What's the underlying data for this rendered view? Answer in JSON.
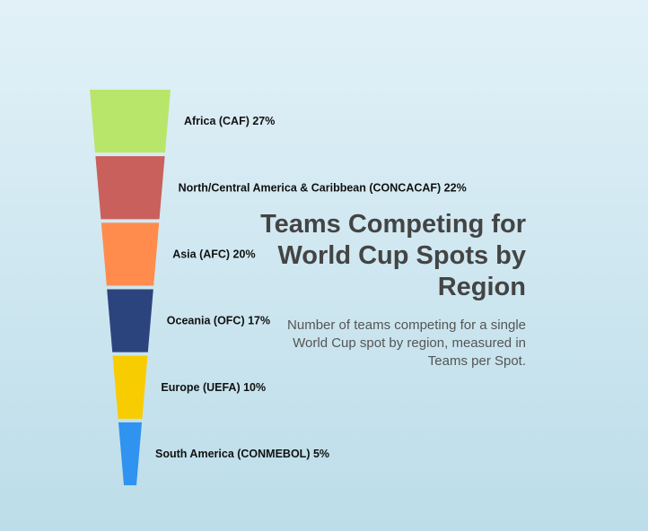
{
  "chart_data": {
    "type": "funnel",
    "title": "Teams Competing for World Cup Spots by Region",
    "subtitle": "Number of teams competing for a single World Cup spot by region, measured in Teams per Spot.",
    "unit": "%",
    "segments": [
      {
        "label": "Africa (CAF)",
        "value": 27,
        "display": "Africa (CAF) 27%",
        "color": "#b8e66a"
      },
      {
        "label": "North/Central America & Caribbean (CONCACAF)",
        "value": 22,
        "display": "North/Central America & Caribbean (CONCACAF) 22%",
        "color": "#c9605b"
      },
      {
        "label": "Asia (AFC)",
        "value": 20,
        "display": "Asia (AFC) 20%",
        "color": "#ff8c4d"
      },
      {
        "label": "Oceania (OFC)",
        "value": 17,
        "display": "Oceania (OFC) 17%",
        "color": "#2c447e"
      },
      {
        "label": "Europe (UEFA)",
        "value": 10,
        "display": "Europe (UEFA) 10%",
        "color": "#f7cc00"
      },
      {
        "label": "South America (CONMEBOL)",
        "value": 5,
        "display": "South America (CONMEBOL) 5%",
        "color": "#2f93ef"
      }
    ]
  }
}
